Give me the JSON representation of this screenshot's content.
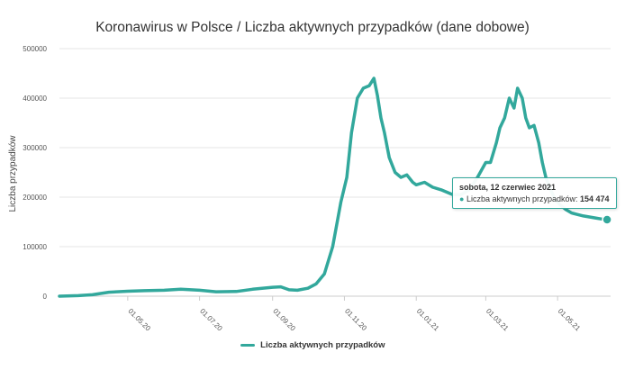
{
  "chart_data": {
    "type": "line",
    "title": "Koronawirus w Polsce / Liczba aktywnych przypadków (dane dobowe)",
    "xlabel": "",
    "ylabel": "Liczba przypadków",
    "ylim": [
      0,
      500000
    ],
    "y_ticks": [
      "0",
      "100000",
      "200000",
      "300000",
      "400000",
      "500000"
    ],
    "x_ticks": [
      "01.05.20",
      "01.07.20",
      "01.09.20",
      "01.11.20",
      "01.01.21",
      "01.03.21",
      "01.05.21"
    ],
    "legend_position": "bottom",
    "grid": true,
    "color": "#32a89c",
    "series": [
      {
        "name": "Liczba aktywnych przypadków",
        "x": [
          "2020-03-04",
          "2020-03-20",
          "2020-04-01",
          "2020-04-15",
          "2020-05-01",
          "2020-05-15",
          "2020-06-01",
          "2020-06-15",
          "2020-07-01",
          "2020-07-15",
          "2020-08-01",
          "2020-08-15",
          "2020-09-01",
          "2020-09-08",
          "2020-09-15",
          "2020-09-22",
          "2020-10-01",
          "2020-10-08",
          "2020-10-15",
          "2020-10-22",
          "2020-10-29",
          "2020-11-03",
          "2020-11-07",
          "2020-11-12",
          "2020-11-17",
          "2020-11-22",
          "2020-11-26",
          "2020-11-29",
          "2020-12-02",
          "2020-12-05",
          "2020-12-09",
          "2020-12-14",
          "2020-12-19",
          "2020-12-24",
          "2020-12-29",
          "2021-01-01",
          "2021-01-08",
          "2021-01-15",
          "2021-01-22",
          "2021-02-01",
          "2021-02-08",
          "2021-02-15",
          "2021-02-22",
          "2021-03-01",
          "2021-03-05",
          "2021-03-10",
          "2021-03-13",
          "2021-03-17",
          "2021-03-21",
          "2021-03-25",
          "2021-03-28",
          "2021-04-01",
          "2021-04-04",
          "2021-04-07",
          "2021-04-11",
          "2021-04-15",
          "2021-04-18",
          "2021-04-21",
          "2021-04-25",
          "2021-04-29",
          "2021-05-03",
          "2021-05-08",
          "2021-05-13",
          "2021-05-18",
          "2021-05-23",
          "2021-05-28",
          "2021-06-02",
          "2021-06-07",
          "2021-06-12"
        ],
        "values": [
          0,
          1000,
          3000,
          8000,
          10000,
          11000,
          12000,
          14000,
          12000,
          9000,
          9500,
          14000,
          18000,
          19000,
          13000,
          12000,
          16000,
          25000,
          45000,
          100000,
          190000,
          240000,
          330000,
          400000,
          420000,
          425000,
          440000,
          405000,
          360000,
          330000,
          280000,
          250000,
          240000,
          245000,
          230000,
          225000,
          230000,
          220000,
          215000,
          205000,
          205000,
          215000,
          240000,
          270000,
          270000,
          310000,
          340000,
          360000,
          400000,
          380000,
          420000,
          400000,
          360000,
          340000,
          345000,
          310000,
          270000,
          240000,
          215000,
          195000,
          185000,
          175000,
          168000,
          165000,
          162000,
          160000,
          158000,
          156000,
          154474
        ]
      }
    ]
  },
  "tooltip": {
    "date": "sobota, 12 czerwiec 2021",
    "series_label": "Liczba aktywnych przypadków:",
    "value": "154 474",
    "marker": "●"
  }
}
